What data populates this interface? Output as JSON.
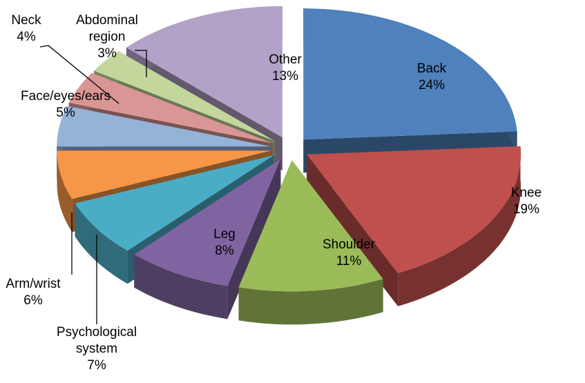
{
  "chart_data": {
    "type": "pie",
    "categories": [
      "Back",
      "Knee",
      "Shoulder",
      "Leg",
      "Psychological system",
      "Arm/wrist",
      "Face/eyes/ears",
      "Neck",
      "Abdominal region",
      "Other"
    ],
    "values": [
      24,
      19,
      11,
      8,
      7,
      6,
      5,
      4,
      3,
      13
    ],
    "value_labels": [
      "24%",
      "19%",
      "11%",
      "8%",
      "7%",
      "6%",
      "5%",
      "4%",
      "3%",
      "13%"
    ],
    "colors": [
      "#4f81bd",
      "#c0504d",
      "#9bbb59",
      "#8064a2",
      "#4bacc6",
      "#f79646",
      "#95b3d7",
      "#d99694",
      "#c3d69b",
      "#b3a2c7"
    ]
  }
}
